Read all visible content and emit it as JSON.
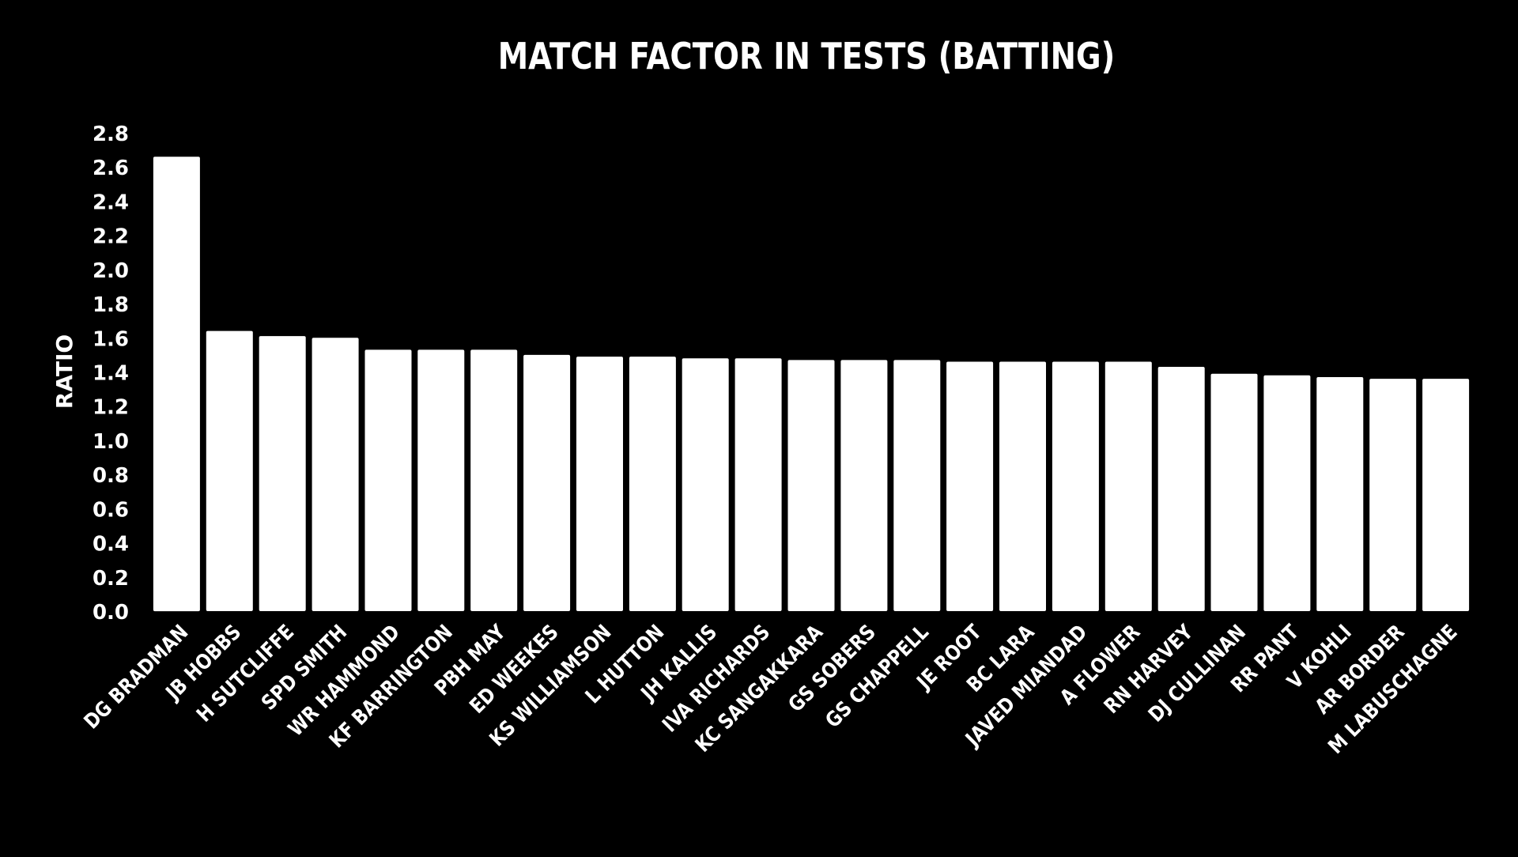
{
  "chart_data": {
    "type": "bar",
    "title": "MATCH FACTOR IN TESTS (BATTING)",
    "xlabel": "",
    "ylabel": "RATIO",
    "ylim": [
      0,
      2.8
    ],
    "yticks": [
      "0.0",
      "0.2",
      "0.4",
      "0.6",
      "0.8",
      "1.0",
      "1.2",
      "1.4",
      "1.6",
      "1.8",
      "2.0",
      "2.2",
      "2.4",
      "2.6",
      "2.8"
    ],
    "grid": false,
    "legend": "none",
    "bar_color": "#ffffff",
    "background_color": "#000000",
    "categories": [
      "DG BRADMAN",
      "JB HOBBS",
      "H SUTCLIFFE",
      "SPD SMITH",
      "WR HAMMOND",
      "KF BARRINGTON",
      "PBH MAY",
      "ED WEEKES",
      "KS WILLIAMSON",
      "L HUTTON",
      "JH KALLIS",
      "IVA RICHARDS",
      "KC SANGAKKARA",
      "GS SOBERS",
      "GS CHAPPELL",
      "JE ROOT",
      "BC LARA",
      "JAVED MIANDAD",
      "A FLOWER",
      "RN HARVEY",
      "DJ CULLINAN",
      "RR PANT",
      "V KOHLI",
      "AR BORDER",
      "M LABUSCHAGNE"
    ],
    "values": [
      2.66,
      1.64,
      1.61,
      1.6,
      1.53,
      1.53,
      1.53,
      1.5,
      1.49,
      1.49,
      1.48,
      1.48,
      1.47,
      1.47,
      1.47,
      1.46,
      1.46,
      1.46,
      1.46,
      1.43,
      1.39,
      1.38,
      1.37,
      1.36,
      1.36
    ]
  }
}
